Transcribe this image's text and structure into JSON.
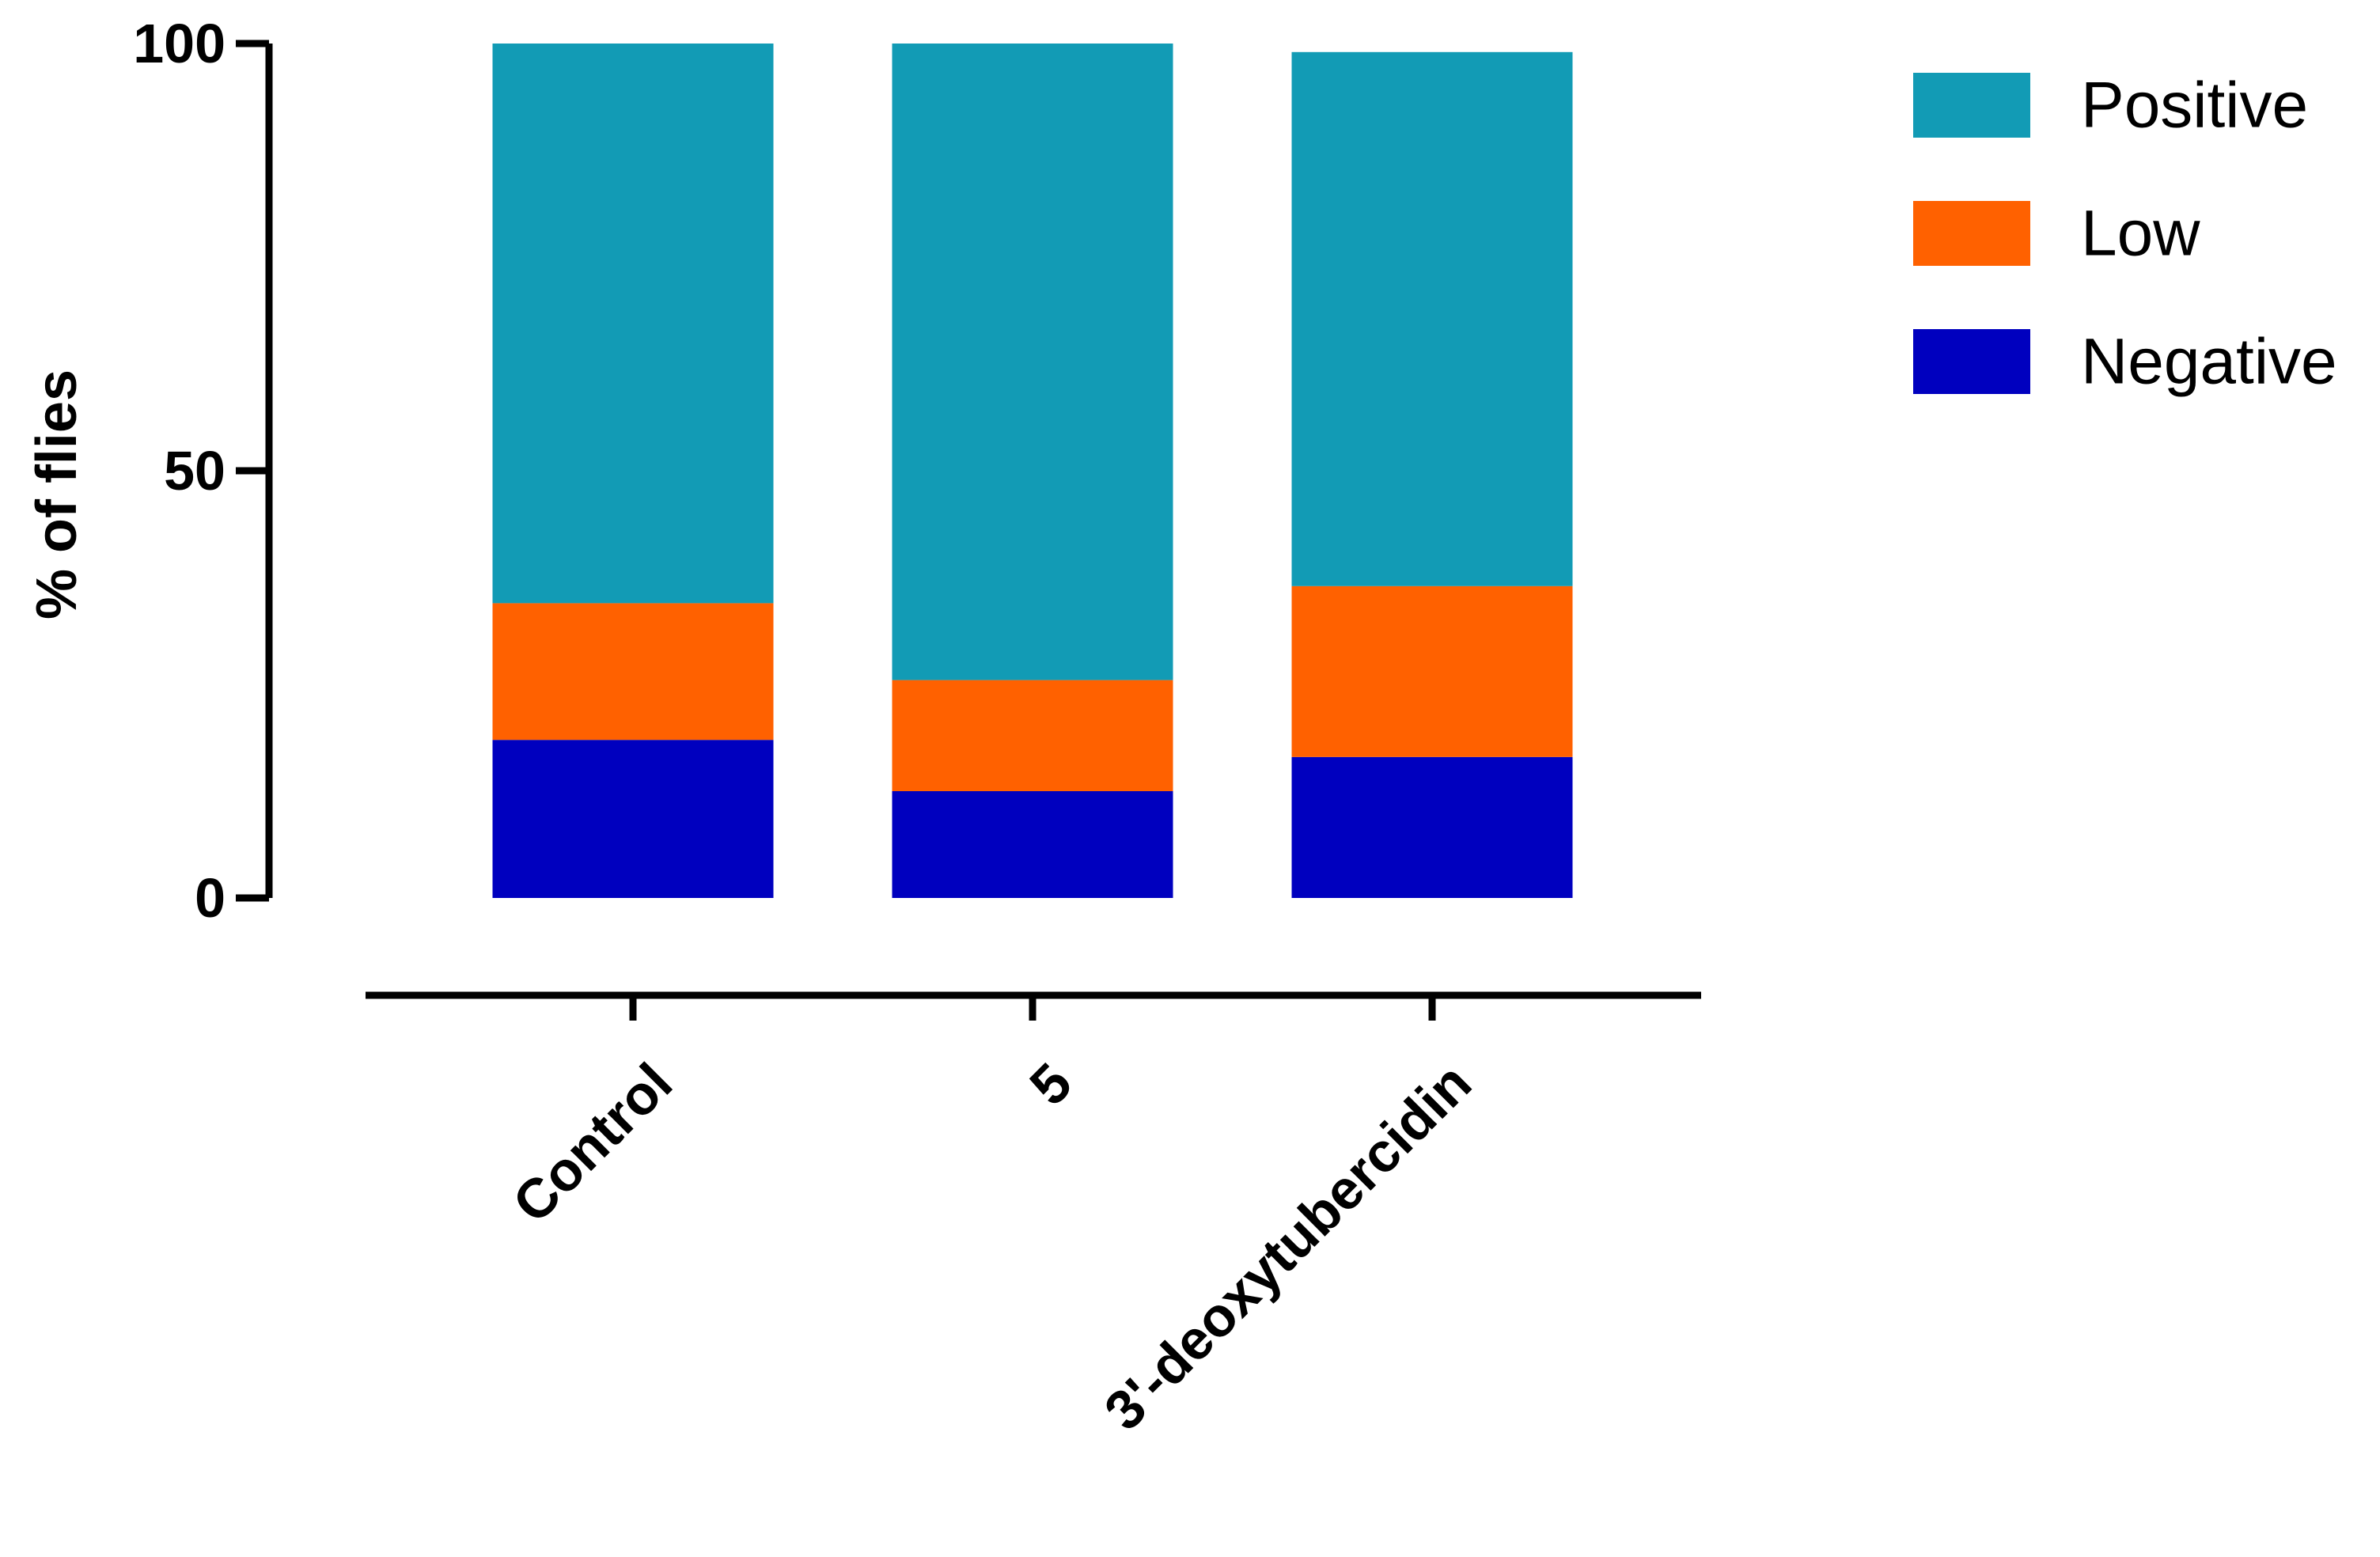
{
  "chart_data": {
    "type": "bar",
    "stacked": true,
    "categories": [
      "Control",
      "5",
      "3'-deoxytubercidin"
    ],
    "series": [
      {
        "name": "Negative",
        "values": [
          18.5,
          12.5,
          16.5
        ],
        "color": "#0000BF"
      },
      {
        "name": "Low",
        "values": [
          16,
          13,
          20
        ],
        "color": "#FF6100"
      },
      {
        "name": "Positive",
        "values": [
          65.5,
          74.5,
          62.5
        ],
        "color": "#129BB5"
      }
    ],
    "legend_order": [
      "Positive",
      "Low",
      "Negative"
    ],
    "legend_position": "top-right",
    "title": "",
    "xlabel": "",
    "ylabel": "% of flies",
    "ylim": [
      0,
      100
    ],
    "yticks": [
      "0",
      "50",
      "100"
    ],
    "grid": false
  }
}
